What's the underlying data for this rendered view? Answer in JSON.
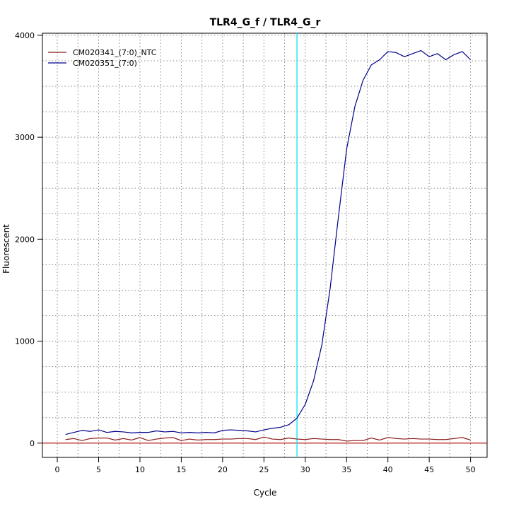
{
  "chart_data": {
    "type": "line",
    "title": "TLR4_G_f / TLR4_G_r",
    "xlabel": "Cycle",
    "ylabel": "Fluorescent",
    "xlim": [
      -1.8,
      52
    ],
    "ylim": [
      -140,
      4020
    ],
    "xticks": [
      0,
      5,
      10,
      15,
      20,
      25,
      30,
      35,
      40,
      45,
      50
    ],
    "xtick_labels": [
      "0",
      "5",
      "10",
      "15",
      "20",
      "25",
      "30",
      "35",
      "40",
      "45",
      "50"
    ],
    "yticks": [
      0,
      1000,
      2000,
      3000,
      4000
    ],
    "ytick_labels": [
      "0",
      "1000",
      "2000",
      "3000",
      "4000"
    ],
    "grid": true,
    "legend": "top-left",
    "threshold": {
      "axis": "x",
      "value": 29,
      "color": "#00e5ee"
    },
    "baseline": {
      "axis": "y",
      "value": 0,
      "color": "#b00000"
    },
    "x": [
      1,
      2,
      3,
      4,
      5,
      6,
      7,
      8,
      9,
      10,
      11,
      12,
      13,
      14,
      15,
      16,
      17,
      18,
      19,
      20,
      21,
      22,
      23,
      24,
      25,
      26,
      27,
      28,
      29,
      30,
      31,
      32,
      33,
      34,
      35,
      36,
      37,
      38,
      39,
      40,
      41,
      42,
      43,
      44,
      45,
      46,
      47,
      48,
      49,
      50
    ],
    "series": [
      {
        "name": "CM020341_(7:0)_NTC",
        "color": "#8b1a1a",
        "values": [
          35,
          45,
          25,
          45,
          50,
          50,
          30,
          45,
          30,
          55,
          25,
          40,
          50,
          55,
          25,
          40,
          30,
          35,
          35,
          40,
          40,
          45,
          45,
          35,
          60,
          40,
          35,
          50,
          40,
          35,
          45,
          40,
          35,
          35,
          20,
          25,
          25,
          50,
          30,
          55,
          45,
          40,
          45,
          40,
          40,
          35,
          35,
          45,
          55,
          30
        ]
      },
      {
        "name": "CM020351_(7:0)",
        "color": "#00008b",
        "values": [
          85,
          105,
          125,
          115,
          130,
          105,
          115,
          110,
          100,
          105,
          105,
          120,
          110,
          115,
          100,
          105,
          100,
          105,
          100,
          125,
          130,
          125,
          120,
          110,
          130,
          145,
          155,
          180,
          245,
          380,
          610,
          960,
          1510,
          2210,
          2880,
          3300,
          3560,
          3710,
          3760,
          3840,
          3830,
          3790,
          3820,
          3850,
          3790,
          3820,
          3760,
          3810,
          3840,
          3760
        ]
      }
    ]
  }
}
